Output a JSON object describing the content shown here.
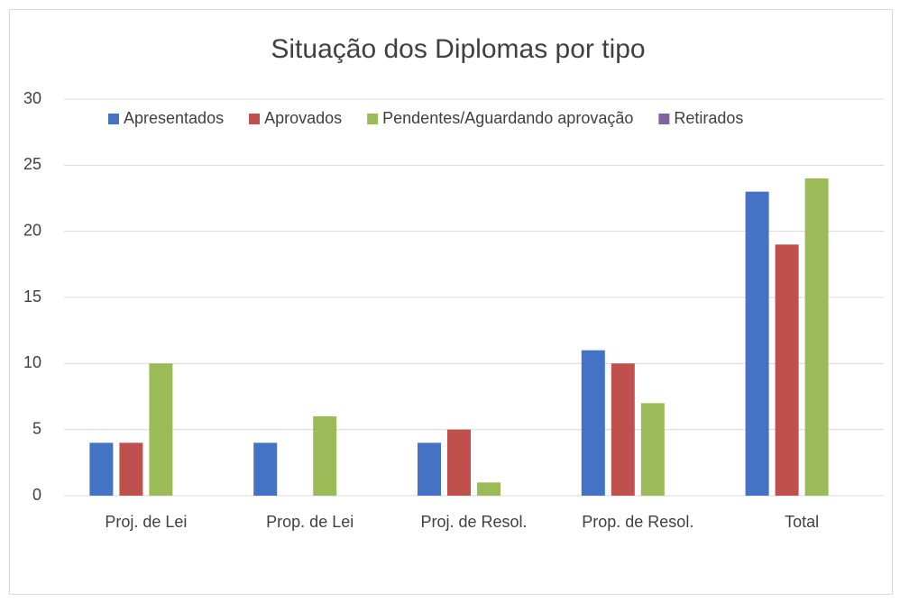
{
  "chart_data": {
    "type": "bar",
    "title": "Situação dos Diplomas por tipo",
    "categories": [
      "Proj. de Lei",
      "Prop. de Lei",
      "Proj. de Resol.",
      "Prop. de Resol.",
      "Total"
    ],
    "series": [
      {
        "name": "Apresentados",
        "color": "#4472c4",
        "values": [
          4,
          4,
          4,
          11,
          23
        ]
      },
      {
        "name": "Aprovados",
        "color": "#c0504d",
        "values": [
          4,
          0,
          5,
          10,
          19
        ]
      },
      {
        "name": "Pendentes/Aguardando aprovação",
        "color": "#9bbb59",
        "values": [
          10,
          6,
          1,
          7,
          24
        ]
      },
      {
        "name": "Retirados",
        "color": "#8064a2",
        "values": [
          0,
          0,
          0,
          0,
          0
        ]
      }
    ],
    "ylim": [
      0,
      30
    ],
    "yticks": [
      0,
      5,
      10,
      15,
      20,
      25,
      30
    ],
    "grid": true,
    "legend": "top"
  }
}
